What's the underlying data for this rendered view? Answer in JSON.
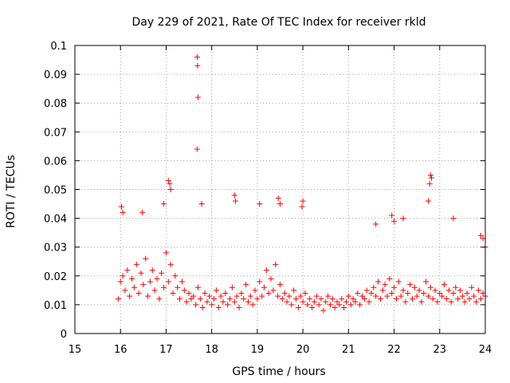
{
  "chart_data": {
    "type": "scatter",
    "title": "Day 229 of 2021, Rate Of TEC Index for receiver rkld",
    "xlabel": "GPS time / hours",
    "ylabel": "ROTI / TECUs",
    "xlim": [
      15,
      24
    ],
    "ylim": [
      0,
      0.1
    ],
    "x_ticks": [
      "15",
      "16",
      "17",
      "18",
      "19",
      "20",
      "21",
      "22",
      "23",
      "24"
    ],
    "y_ticks": [
      "0",
      "0.01",
      "0.02",
      "0.03",
      "0.04",
      "0.05",
      "0.06",
      "0.07",
      "0.08",
      "0.09",
      "0.1"
    ],
    "grid": true,
    "marker": "+",
    "color": "#ff0000",
    "series": [
      {
        "name": "ROTI",
        "x": [
          15.95,
          16.0,
          16.05,
          16.1,
          16.15,
          16.2,
          16.25,
          16.3,
          16.35,
          16.4,
          16.45,
          16.5,
          16.55,
          16.6,
          16.65,
          16.7,
          16.75,
          16.8,
          16.85,
          16.9,
          16.95,
          17.0,
          17.05,
          17.1,
          17.15,
          17.2,
          17.25,
          17.3,
          17.35,
          17.4,
          17.45,
          17.5,
          17.55,
          17.6,
          17.65,
          17.7,
          17.75,
          17.8,
          17.85,
          17.9,
          17.95,
          18.0,
          18.05,
          18.1,
          18.15,
          18.2,
          18.25,
          18.3,
          18.35,
          18.4,
          18.45,
          18.5,
          18.55,
          18.6,
          18.65,
          18.7,
          18.75,
          18.8,
          18.85,
          18.9,
          18.95,
          19.0,
          19.05,
          19.1,
          19.15,
          19.2,
          19.25,
          19.3,
          19.35,
          19.4,
          19.45,
          19.5,
          19.55,
          19.6,
          19.65,
          19.7,
          19.75,
          19.8,
          19.85,
          19.9,
          19.95,
          20.0,
          20.05,
          20.1,
          20.15,
          20.2,
          20.25,
          20.3,
          20.35,
          20.4,
          20.45,
          20.5,
          20.55,
          20.6,
          20.65,
          20.7,
          20.75,
          20.8,
          20.85,
          20.9,
          20.95,
          21.0,
          21.05,
          21.1,
          21.15,
          21.2,
          21.25,
          21.3,
          21.35,
          21.4,
          21.45,
          21.5,
          21.55,
          21.6,
          21.65,
          21.7,
          21.75,
          21.8,
          21.85,
          21.9,
          21.95,
          22.0,
          22.05,
          22.1,
          22.15,
          22.2,
          22.25,
          22.3,
          22.35,
          22.4,
          22.45,
          22.5,
          22.55,
          22.6,
          22.65,
          22.7,
          22.75,
          22.8,
          22.85,
          22.9,
          22.95,
          23.0,
          23.05,
          23.1,
          23.15,
          23.2,
          23.25,
          23.3,
          23.35,
          23.4,
          23.45,
          23.5,
          23.55,
          23.6,
          23.65,
          23.7,
          23.75,
          23.8,
          23.85,
          23.9,
          23.95,
          24.0,
          17.05,
          17.08,
          17.1,
          16.02,
          16.05,
          16.48,
          16.95,
          17.68,
          17.69,
          17.7,
          17.68,
          17.78,
          18.5,
          18.52,
          19.05,
          19.46,
          19.5,
          19.98,
          20.0,
          21.6,
          21.95,
          22.0,
          22.2,
          22.75,
          22.78,
          22.8,
          22.82,
          23.3,
          23.9,
          23.95,
          24.0
        ],
        "y": [
          0.012,
          0.018,
          0.02,
          0.015,
          0.022,
          0.013,
          0.019,
          0.016,
          0.024,
          0.014,
          0.021,
          0.017,
          0.026,
          0.013,
          0.018,
          0.022,
          0.015,
          0.019,
          0.012,
          0.021,
          0.016,
          0.028,
          0.018,
          0.024,
          0.014,
          0.02,
          0.016,
          0.012,
          0.018,
          0.015,
          0.011,
          0.014,
          0.012,
          0.013,
          0.01,
          0.016,
          0.012,
          0.009,
          0.014,
          0.011,
          0.013,
          0.01,
          0.012,
          0.015,
          0.009,
          0.013,
          0.011,
          0.014,
          0.01,
          0.012,
          0.016,
          0.011,
          0.013,
          0.009,
          0.014,
          0.012,
          0.017,
          0.011,
          0.013,
          0.01,
          0.015,
          0.012,
          0.018,
          0.013,
          0.016,
          0.022,
          0.014,
          0.019,
          0.015,
          0.024,
          0.013,
          0.017,
          0.012,
          0.014,
          0.011,
          0.013,
          0.01,
          0.015,
          0.012,
          0.009,
          0.013,
          0.011,
          0.014,
          0.01,
          0.012,
          0.009,
          0.011,
          0.013,
          0.01,
          0.012,
          0.008,
          0.011,
          0.013,
          0.01,
          0.012,
          0.009,
          0.011,
          0.01,
          0.012,
          0.009,
          0.011,
          0.013,
          0.01,
          0.012,
          0.011,
          0.014,
          0.01,
          0.013,
          0.012,
          0.015,
          0.011,
          0.014,
          0.016,
          0.013,
          0.018,
          0.012,
          0.015,
          0.017,
          0.013,
          0.019,
          0.014,
          0.016,
          0.012,
          0.018,
          0.013,
          0.015,
          0.011,
          0.014,
          0.017,
          0.012,
          0.016,
          0.013,
          0.015,
          0.011,
          0.014,
          0.018,
          0.013,
          0.016,
          0.012,
          0.015,
          0.011,
          0.014,
          0.013,
          0.017,
          0.012,
          0.015,
          0.011,
          0.014,
          0.016,
          0.012,
          0.015,
          0.013,
          0.011,
          0.014,
          0.012,
          0.016,
          0.013,
          0.011,
          0.015,
          0.012,
          0.014,
          0.013,
          0.053,
          0.052,
          0.05,
          0.044,
          0.042,
          0.042,
          0.045,
          0.096,
          0.093,
          0.082,
          0.064,
          0.045,
          0.048,
          0.046,
          0.045,
          0.047,
          0.045,
          0.044,
          0.046,
          0.038,
          0.041,
          0.039,
          0.04,
          0.046,
          0.052,
          0.055,
          0.054,
          0.04,
          0.034,
          0.033,
          0.03
        ]
      }
    ]
  }
}
